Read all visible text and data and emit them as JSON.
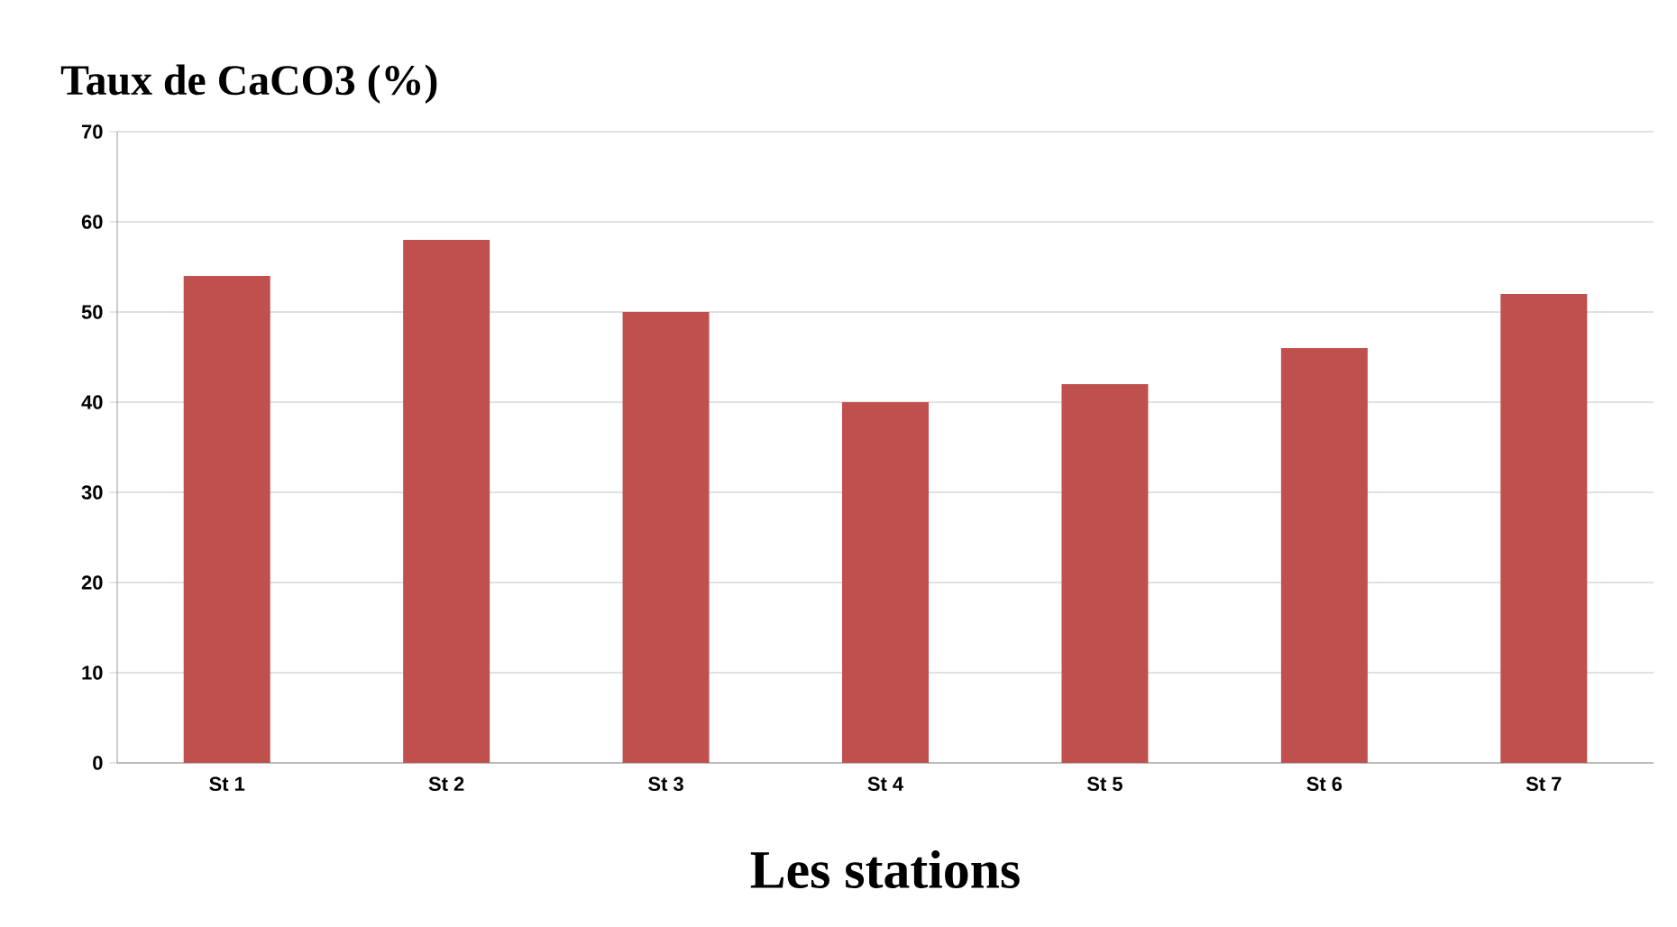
{
  "chart_data": {
    "type": "bar",
    "ylabel": "Taux de CaCO3 (%)",
    "xlabel": "Les stations",
    "categories": [
      "St 1",
      "St 2",
      "St 3",
      "St 4",
      "St 5",
      "St 6",
      "St 7"
    ],
    "values": [
      54,
      58,
      50,
      40,
      42,
      46,
      52
    ],
    "color": "#c0504d",
    "ylim": [
      0,
      70
    ],
    "yticks": [
      0,
      10,
      20,
      30,
      40,
      50,
      60,
      70
    ],
    "grid": "y"
  }
}
